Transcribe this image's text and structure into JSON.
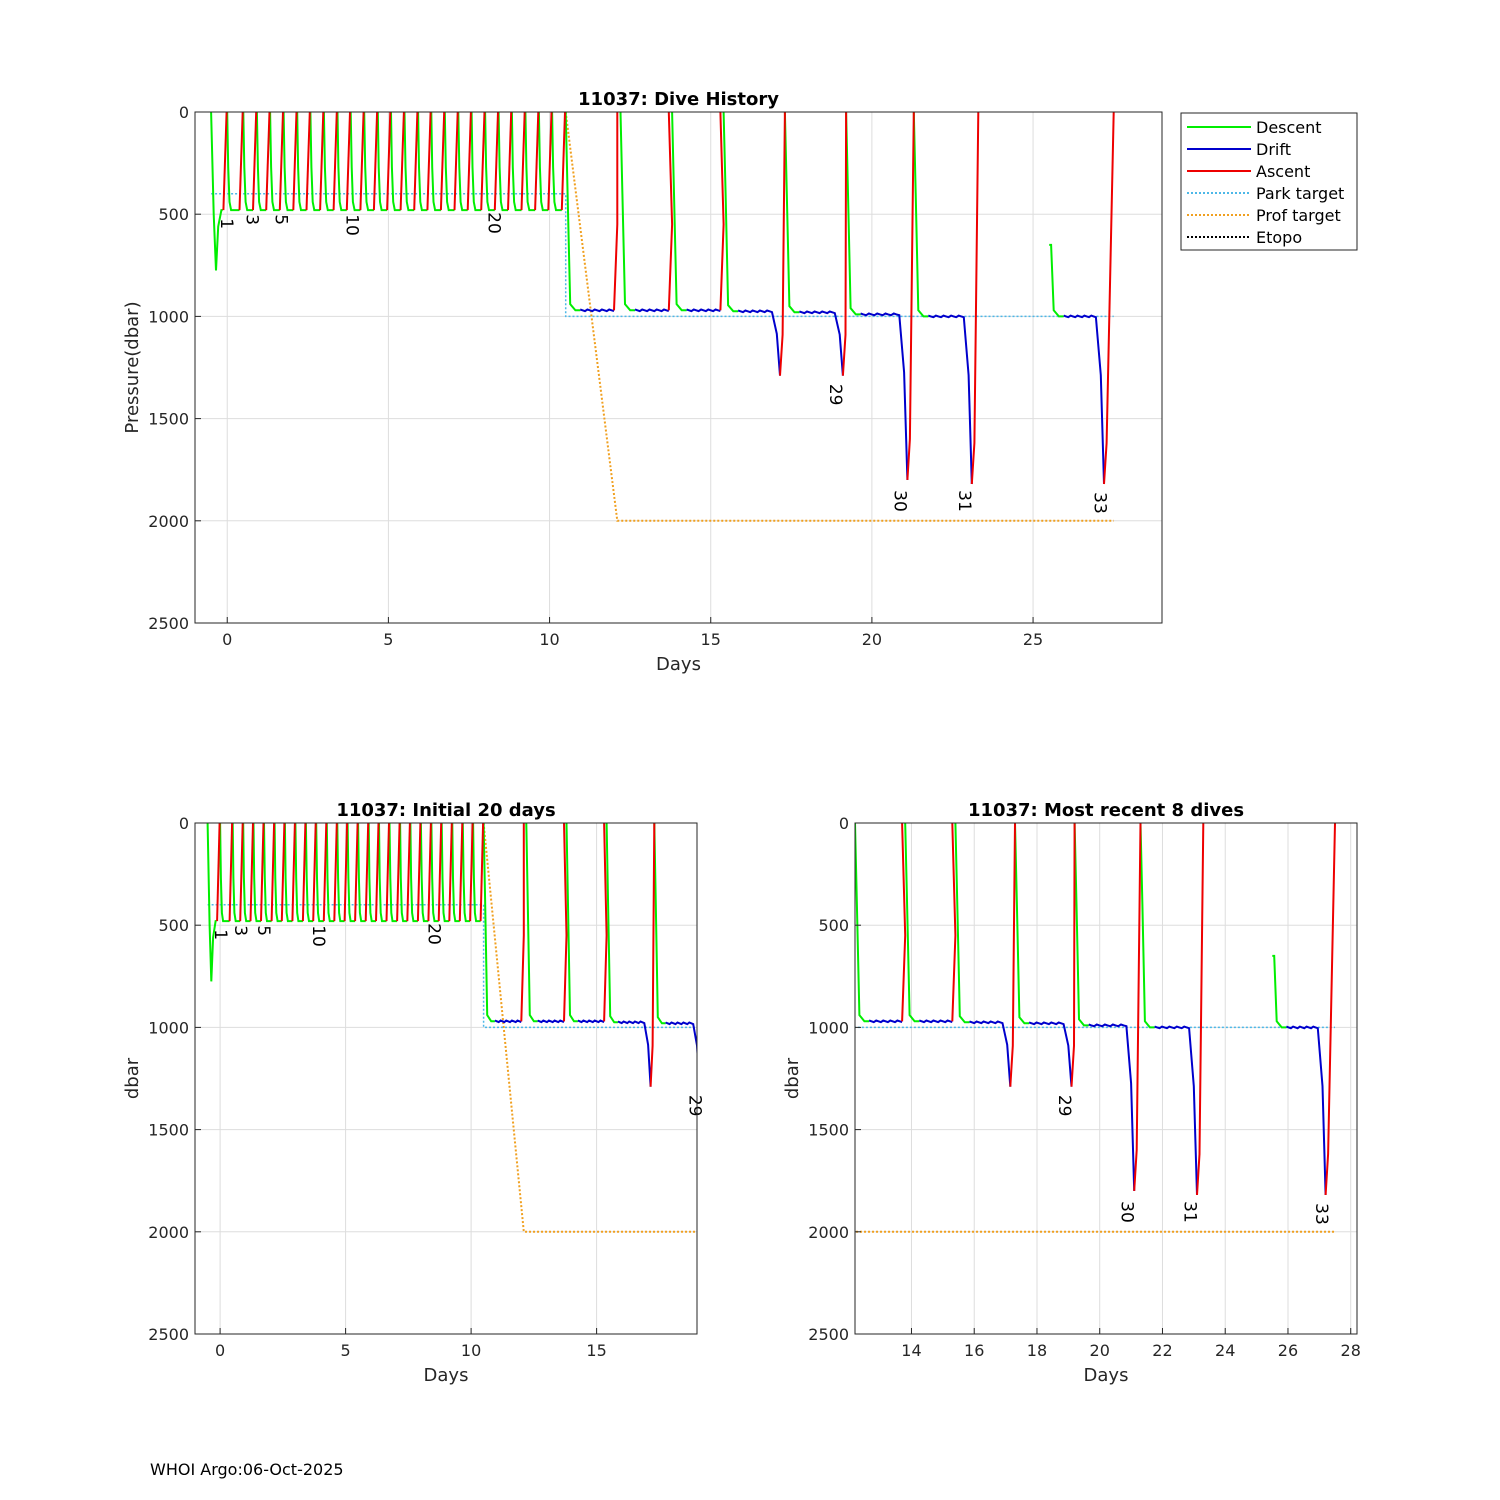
{
  "footer": "WHOI Argo:06-Oct-2025",
  "legend": [
    {
      "label": "Descent",
      "color": "#00ee00",
      "style": "solid"
    },
    {
      "label": "Drift",
      "color": "#0000cc",
      "style": "solid"
    },
    {
      "label": "Ascent",
      "color": "#ee0000",
      "style": "solid"
    },
    {
      "label": "Park target",
      "color": "#4db8e8",
      "style": "dotted"
    },
    {
      "label": "Prof target",
      "color": "#f0a020",
      "style": "dotted"
    },
    {
      "label": "Etopo",
      "color": "#000000",
      "style": "dotted"
    }
  ],
  "cycles": {
    "short_days": [
      -0.5,
      0.0,
      0.5,
      0.92,
      1.33,
      1.75,
      2.17,
      2.58,
      3.0,
      3.42,
      3.83,
      4.25,
      4.67,
      5.08,
      5.5,
      5.92,
      6.33,
      6.75,
      7.17,
      7.58,
      8.0,
      8.42,
      8.83,
      9.25,
      9.67,
      10.08,
      10.5
    ],
    "short_park_dbar": 480,
    "first_dive_max_dbar": 775,
    "long_dives": [
      {
        "start": 10.5,
        "park": 970,
        "end_deep": 12.0,
        "deep_max": 970,
        "surface": 12.1
      },
      {
        "start": 12.2,
        "park": 970,
        "end_deep": 13.7,
        "deep_max": 970,
        "surface": 13.7
      },
      {
        "start": 13.8,
        "park": 970,
        "end_deep": 15.3,
        "deep_max": 970,
        "surface": 15.3
      },
      {
        "start": 15.4,
        "park": 975,
        "end_deep": 16.9,
        "deep_max": 1290,
        "surface": 17.3
      },
      {
        "start": 17.3,
        "park": 980,
        "end_deep": 18.85,
        "deep_max": 1290,
        "surface": 19.2
      },
      {
        "start": 19.2,
        "park": 990,
        "end_deep": 20.85,
        "deep_max": 1800,
        "surface": 21.3
      },
      {
        "start": 21.3,
        "park": 1000,
        "end_deep": 22.85,
        "deep_max": 1820,
        "surface": 23.3
      },
      {
        "start": 25.5,
        "start_depth": 650,
        "park": 1000,
        "end_deep": 26.95,
        "deep_max": 1820,
        "surface": 27.5
      }
    ]
  },
  "park_target": {
    "x": [
      -0.5,
      10.5,
      10.5,
      27.5
    ],
    "y": [
      400,
      400,
      1000,
      1000
    ]
  },
  "prof_target": {
    "x": [
      10.5,
      12.1,
      27.5
    ],
    "y": [
      0,
      2000,
      2000
    ]
  },
  "chart_data": [
    {
      "type": "line",
      "title": "11037: Dive History",
      "xlabel": "Days",
      "ylabel": "Pressure(dbar)",
      "xlim": [
        -1,
        29
      ],
      "ylim": [
        0,
        2500
      ],
      "xticks": [
        0,
        5,
        10,
        15,
        20,
        25
      ],
      "yticks": [
        0,
        500,
        1000,
        1500,
        2000,
        2500
      ],
      "grid": true,
      "legend": "outside-right",
      "series": [
        "Descent",
        "Drift",
        "Ascent",
        "Park target",
        "Prof target",
        "Etopo"
      ],
      "cycle_labels": [
        {
          "text": "1",
          "x": -0.2,
          "y": 520
        },
        {
          "text": "3",
          "x": 0.6,
          "y": 500
        },
        {
          "text": "5",
          "x": 1.5,
          "y": 500
        },
        {
          "text": "10",
          "x": 3.7,
          "y": 500
        },
        {
          "text": "20",
          "x": 8.1,
          "y": 490
        },
        {
          "text": "29",
          "x": 18.7,
          "y": 1330
        },
        {
          "text": "30",
          "x": 20.7,
          "y": 1850
        },
        {
          "text": "31",
          "x": 22.7,
          "y": 1850
        },
        {
          "text": "33",
          "x": 26.9,
          "y": 1860
        }
      ]
    },
    {
      "type": "line",
      "title": "11037: Initial 20 days",
      "xlabel": "Days",
      "ylabel": "dbar",
      "xlim": [
        -1,
        19
      ],
      "ylim": [
        0,
        2500
      ],
      "xticks": [
        0,
        5,
        10,
        15
      ],
      "yticks": [
        0,
        500,
        1000,
        1500,
        2000,
        2500
      ],
      "grid": true,
      "cycle_labels": [
        {
          "text": "1",
          "x": -0.2,
          "y": 520
        },
        {
          "text": "3",
          "x": 0.6,
          "y": 500
        },
        {
          "text": "5",
          "x": 1.5,
          "y": 500
        },
        {
          "text": "10",
          "x": 3.7,
          "y": 500
        },
        {
          "text": "20",
          "x": 8.3,
          "y": 490
        },
        {
          "text": "29",
          "x": 18.7,
          "y": 1330
        }
      ]
    },
    {
      "type": "line",
      "title": "11037: Most recent 8 dives",
      "xlabel": "Days",
      "ylabel": "dbar",
      "xlim": [
        12.2,
        28.2
      ],
      "ylim": [
        0,
        2500
      ],
      "xticks": [
        14,
        16,
        18,
        20,
        22,
        24,
        26,
        28
      ],
      "yticks": [
        0,
        500,
        1000,
        1500,
        2000,
        2500
      ],
      "grid": true,
      "cycle_labels": [
        {
          "text": "29",
          "x": 18.7,
          "y": 1330
        },
        {
          "text": "30",
          "x": 20.7,
          "y": 1850
        },
        {
          "text": "31",
          "x": 22.7,
          "y": 1850
        },
        {
          "text": "33",
          "x": 26.9,
          "y": 1860
        }
      ]
    }
  ]
}
